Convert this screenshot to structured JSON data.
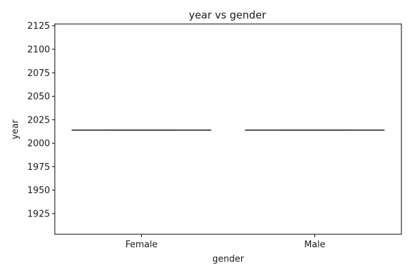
{
  "chart_data": {
    "type": "box",
    "title": "year vs gender",
    "xlabel": "gender",
    "ylabel": "year",
    "categories": [
      "Female",
      "Male"
    ],
    "series": [
      {
        "category": "Female",
        "min": 2014,
        "q1": 2014,
        "median": 2014,
        "q3": 2014,
        "max": 2014
      },
      {
        "category": "Male",
        "min": 2014,
        "q1": 2014,
        "median": 2014,
        "q3": 2014,
        "max": 2014
      }
    ],
    "ylim": [
      1903,
      2127
    ],
    "yticks": [
      1925,
      1950,
      1975,
      2000,
      2025,
      2050,
      2075,
      2100,
      2125
    ],
    "grid": false,
    "colors": {
      "box_line": "#404040",
      "axes": "#000000"
    }
  }
}
